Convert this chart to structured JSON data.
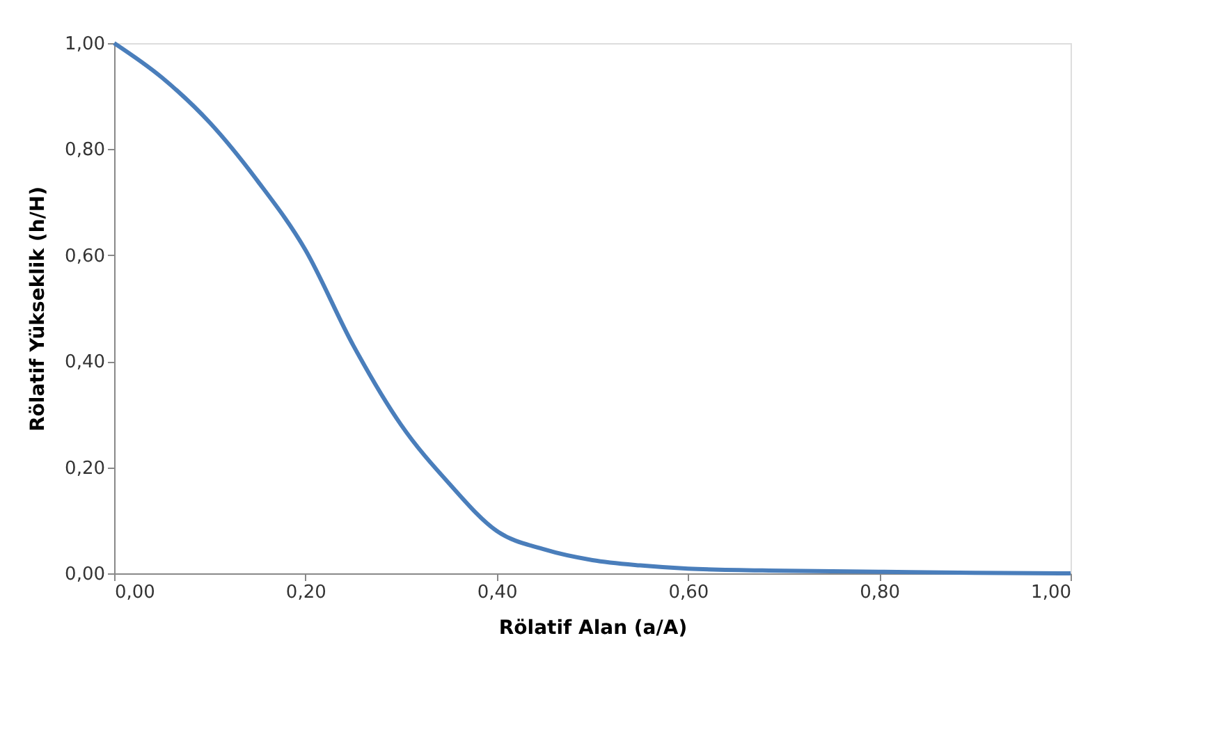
{
  "chart_data": {
    "type": "line",
    "xlabel": "Rölatif Alan (a/A)",
    "ylabel": "Rölatif Yükseklik (h/H)",
    "x": [
      0,
      0.05,
      0.1,
      0.15,
      0.2,
      0.25,
      0.3,
      0.35,
      0.4,
      0.45,
      0.5,
      0.55,
      0.6,
      0.7,
      0.8,
      0.9,
      1.0
    ],
    "series": [
      {
        "color": "#4a7ebb",
        "values": [
          1.0,
          0.935,
          0.85,
          0.74,
          0.61,
          0.43,
          0.28,
          0.17,
          0.08,
          0.045,
          0.025,
          0.015,
          0.009,
          0.005,
          0.003,
          0.001,
          0.0
        ]
      }
    ],
    "xlim": [
      0,
      1
    ],
    "ylim": [
      0,
      1
    ],
    "xticks": [
      {
        "value": 0,
        "label": "0,00"
      },
      {
        "value": 0.2,
        "label": "0,20"
      },
      {
        "value": 0.4,
        "label": "0,40"
      },
      {
        "value": 0.6,
        "label": "0,60"
      },
      {
        "value": 0.8,
        "label": "0,80"
      },
      {
        "value": 1,
        "label": "1,00"
      }
    ],
    "yticks": [
      {
        "value": 0,
        "label": "0,00"
      },
      {
        "value": 0.2,
        "label": "0,20"
      },
      {
        "value": 0.4,
        "label": "0,40"
      },
      {
        "value": 0.6,
        "label": "0,60"
      },
      {
        "value": 0.8,
        "label": "0,80"
      },
      {
        "value": 1,
        "label": "1,00"
      }
    ],
    "grid": false,
    "marker": "none",
    "line_style": "solid"
  }
}
